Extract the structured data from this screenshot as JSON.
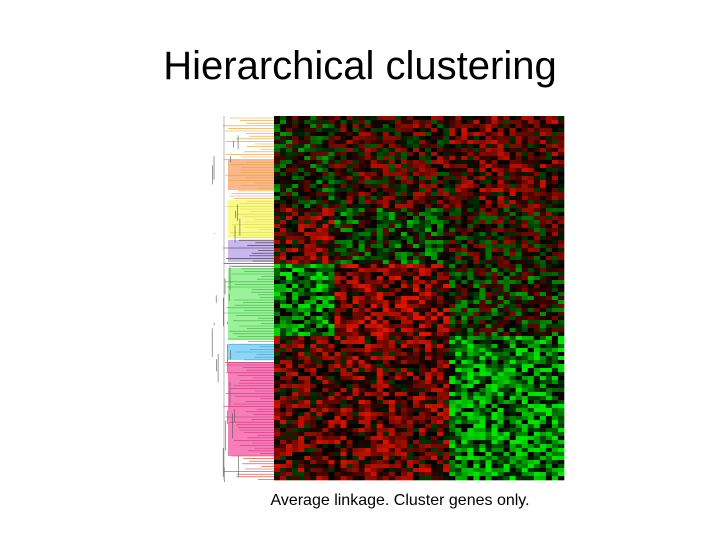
{
  "title": "Hierarchical clustering",
  "caption": "Average linkage. Cluster genes only."
}
